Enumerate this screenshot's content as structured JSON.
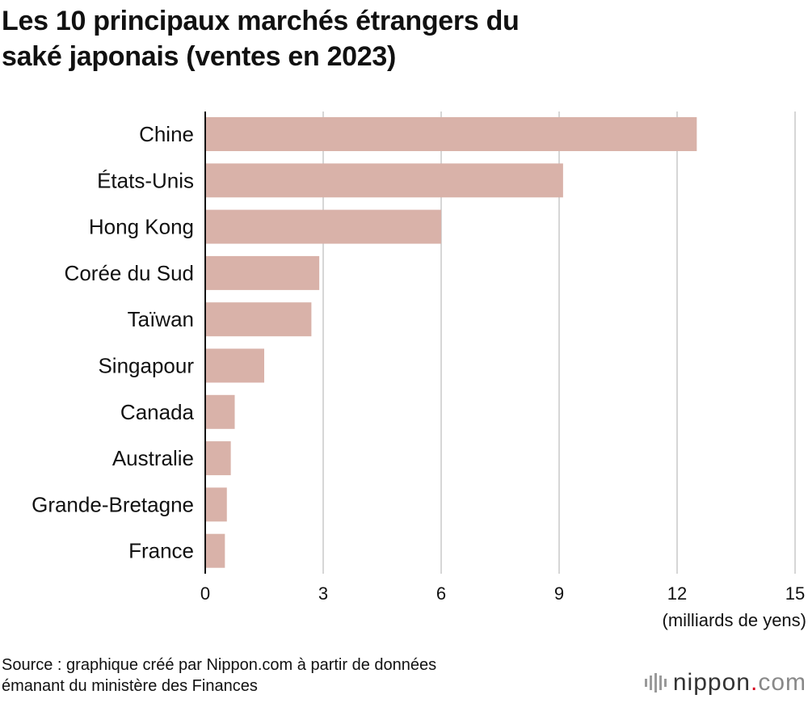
{
  "title": {
    "line1": "Les 10 principaux marchés étrangers du",
    "line2": "saké japonais (ventes en 2023)"
  },
  "colors": {
    "bar": "#d9b2a9",
    "grid": "#c8c8c8",
    "axis": "#111111",
    "logo_accent": "#d6001c"
  },
  "chart_data": {
    "type": "bar",
    "orientation": "horizontal",
    "categories": [
      "Chine",
      "États-Unis",
      "Hong Kong",
      "Corée du Sud",
      "Taïwan",
      "Singapour",
      "Canada",
      "Australie",
      "Grande-Bretagne",
      "France"
    ],
    "values": [
      12.5,
      9.1,
      6.0,
      2.9,
      2.7,
      1.5,
      0.75,
      0.65,
      0.55,
      0.5
    ],
    "xlim": [
      0,
      15
    ],
    "xticks": [
      0,
      3,
      6,
      9,
      12,
      15
    ],
    "unit_label": "(milliards de yens)",
    "grid": "vertical"
  },
  "source": {
    "line1": "Source : graphique créé par Nippon.com à partir de données",
    "line2": "émanant du ministère des Finances"
  },
  "logo": {
    "name": "nippon",
    "dot": ".",
    "tld": "com",
    "icon": "nippon-logo-icon"
  }
}
